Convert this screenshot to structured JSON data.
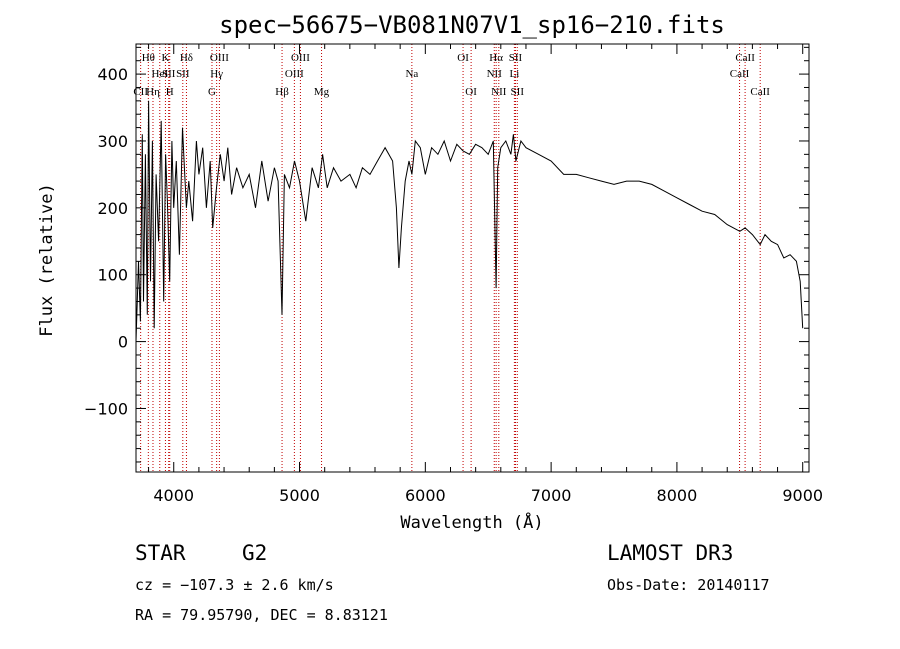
{
  "chart_data": {
    "type": "line",
    "title": "spec−56675−VB081N07V1_sp16−210.fits",
    "xlabel": "Wavelength (Å)",
    "ylabel": "Flux (relative)",
    "xlim": [
      3700,
      9050
    ],
    "ylim": [
      -195,
      445
    ],
    "x_ticks": [
      4000,
      5000,
      6000,
      7000,
      8000,
      9000
    ],
    "x_tick_labels": [
      "4000",
      "5000",
      "6000",
      "7000",
      "8000",
      "9000"
    ],
    "y_ticks": [
      -100,
      0,
      100,
      200,
      300,
      400
    ],
    "y_tick_labels": [
      "−100",
      "0",
      "100",
      "200",
      "300",
      "400"
    ],
    "series": [
      {
        "name": "spectrum",
        "x": [
          3700,
          3720,
          3735,
          3750,
          3760,
          3775,
          3790,
          3800,
          3815,
          3830,
          3845,
          3860,
          3880,
          3900,
          3920,
          3935,
          3950,
          3968,
          3985,
          4000,
          4020,
          4045,
          4070,
          4085,
          4101,
          4120,
          4150,
          4180,
          4200,
          4230,
          4260,
          4290,
          4310,
          4340,
          4370,
          4400,
          4430,
          4460,
          4500,
          4550,
          4600,
          4650,
          4700,
          4750,
          4800,
          4830,
          4861,
          4880,
          4920,
          4960,
          5000,
          5050,
          5100,
          5150,
          5183,
          5220,
          5270,
          5330,
          5400,
          5450,
          5500,
          5560,
          5620,
          5680,
          5740,
          5770,
          5790,
          5810,
          5840,
          5870,
          5893,
          5920,
          5960,
          6000,
          6050,
          6100,
          6150,
          6200,
          6250,
          6300,
          6350,
          6400,
          6450,
          6500,
          6540,
          6563,
          6575,
          6600,
          6640,
          6680,
          6700,
          6720,
          6760,
          6800,
          6900,
          7000,
          7100,
          7200,
          7300,
          7400,
          7500,
          7600,
          7700,
          7800,
          7900,
          8000,
          8100,
          8200,
          8300,
          8400,
          8500,
          8542,
          8600,
          8662,
          8700,
          8750,
          8800,
          8850,
          8900,
          8950,
          8980,
          9000
        ],
        "y": [
          0,
          120,
          30,
          310,
          60,
          280,
          40,
          360,
          90,
          300,
          20,
          250,
          150,
          330,
          60,
          280,
          210,
          90,
          300,
          200,
          270,
          130,
          320,
          260,
          200,
          240,
          180,
          300,
          250,
          290,
          200,
          270,
          170,
          230,
          280,
          240,
          290,
          220,
          260,
          230,
          250,
          200,
          270,
          210,
          260,
          240,
          40,
          250,
          230,
          270,
          240,
          180,
          260,
          230,
          280,
          230,
          260,
          240,
          250,
          230,
          260,
          250,
          270,
          290,
          270,
          200,
          110,
          170,
          240,
          270,
          250,
          300,
          290,
          250,
          290,
          280,
          300,
          270,
          295,
          285,
          280,
          295,
          290,
          280,
          300,
          80,
          260,
          290,
          300,
          280,
          310,
          270,
          300,
          290,
          280,
          270,
          250,
          250,
          245,
          240,
          235,
          240,
          240,
          235,
          225,
          215,
          205,
          195,
          190,
          175,
          165,
          170,
          160,
          145,
          160,
          150,
          145,
          125,
          130,
          120,
          90,
          20
        ]
      }
    ],
    "spectral_lines": [
      {
        "label": "Hθ",
        "wave": 3798,
        "row": 1
      },
      {
        "label": "CII",
        "wave": 3737,
        "row": 3
      },
      {
        "label": "Hη",
        "wave": 3835,
        "row": 3
      },
      {
        "label": "HeI",
        "wave": 3889,
        "row": 2
      },
      {
        "label": "K",
        "wave": 3934,
        "row": 1
      },
      {
        "label": "SII",
        "wave": 3960,
        "row": 2
      },
      {
        "label": "H",
        "wave": 3968,
        "row": 3
      },
      {
        "label": "Hδ",
        "wave": 4101,
        "row": 1
      },
      {
        "label": "SII",
        "wave": 4072,
        "row": 2
      },
      {
        "label": "OIII",
        "wave": 4363,
        "row": 1
      },
      {
        "label": "Hγ",
        "wave": 4341,
        "row": 2
      },
      {
        "label": "G",
        "wave": 4304,
        "row": 3
      },
      {
        "label": "Hβ",
        "wave": 4861,
        "row": 3
      },
      {
        "label": "OIII",
        "wave": 4959,
        "row": 2
      },
      {
        "label": "OIII",
        "wave": 5007,
        "row": 1
      },
      {
        "label": "Mg",
        "wave": 5175,
        "row": 3
      },
      {
        "label": "Na",
        "wave": 5893,
        "row": 2
      },
      {
        "label": "OI",
        "wave": 6300,
        "row": 1
      },
      {
        "label": "OI",
        "wave": 6364,
        "row": 3
      },
      {
        "label": "Hα",
        "wave": 6563,
        "row": 1
      },
      {
        "label": "NII",
        "wave": 6548,
        "row": 2
      },
      {
        "label": "NII",
        "wave": 6584,
        "row": 3
      },
      {
        "label": "SII",
        "wave": 6717,
        "row": 1
      },
      {
        "label": "Li",
        "wave": 6708,
        "row": 2
      },
      {
        "label": "SII",
        "wave": 6731,
        "row": 3
      },
      {
        "label": "CaII",
        "wave": 8542,
        "row": 1
      },
      {
        "label": "CaII",
        "wave": 8498,
        "row": 2
      },
      {
        "label": "CaII",
        "wave": 8662,
        "row": 3
      }
    ],
    "colors": {
      "spectrum": "#000000",
      "line_markers": "#c00000",
      "axes": "#000000"
    }
  },
  "info": {
    "class_label": "STAR",
    "subclass_label": "G2",
    "survey": "LAMOST DR3",
    "cz": "cz = −107.3 ± 2.6 km/s",
    "obs_date": "Obs-Date: 20140117",
    "coords": "RA =  79.95790, DEC =   8.83121"
  }
}
